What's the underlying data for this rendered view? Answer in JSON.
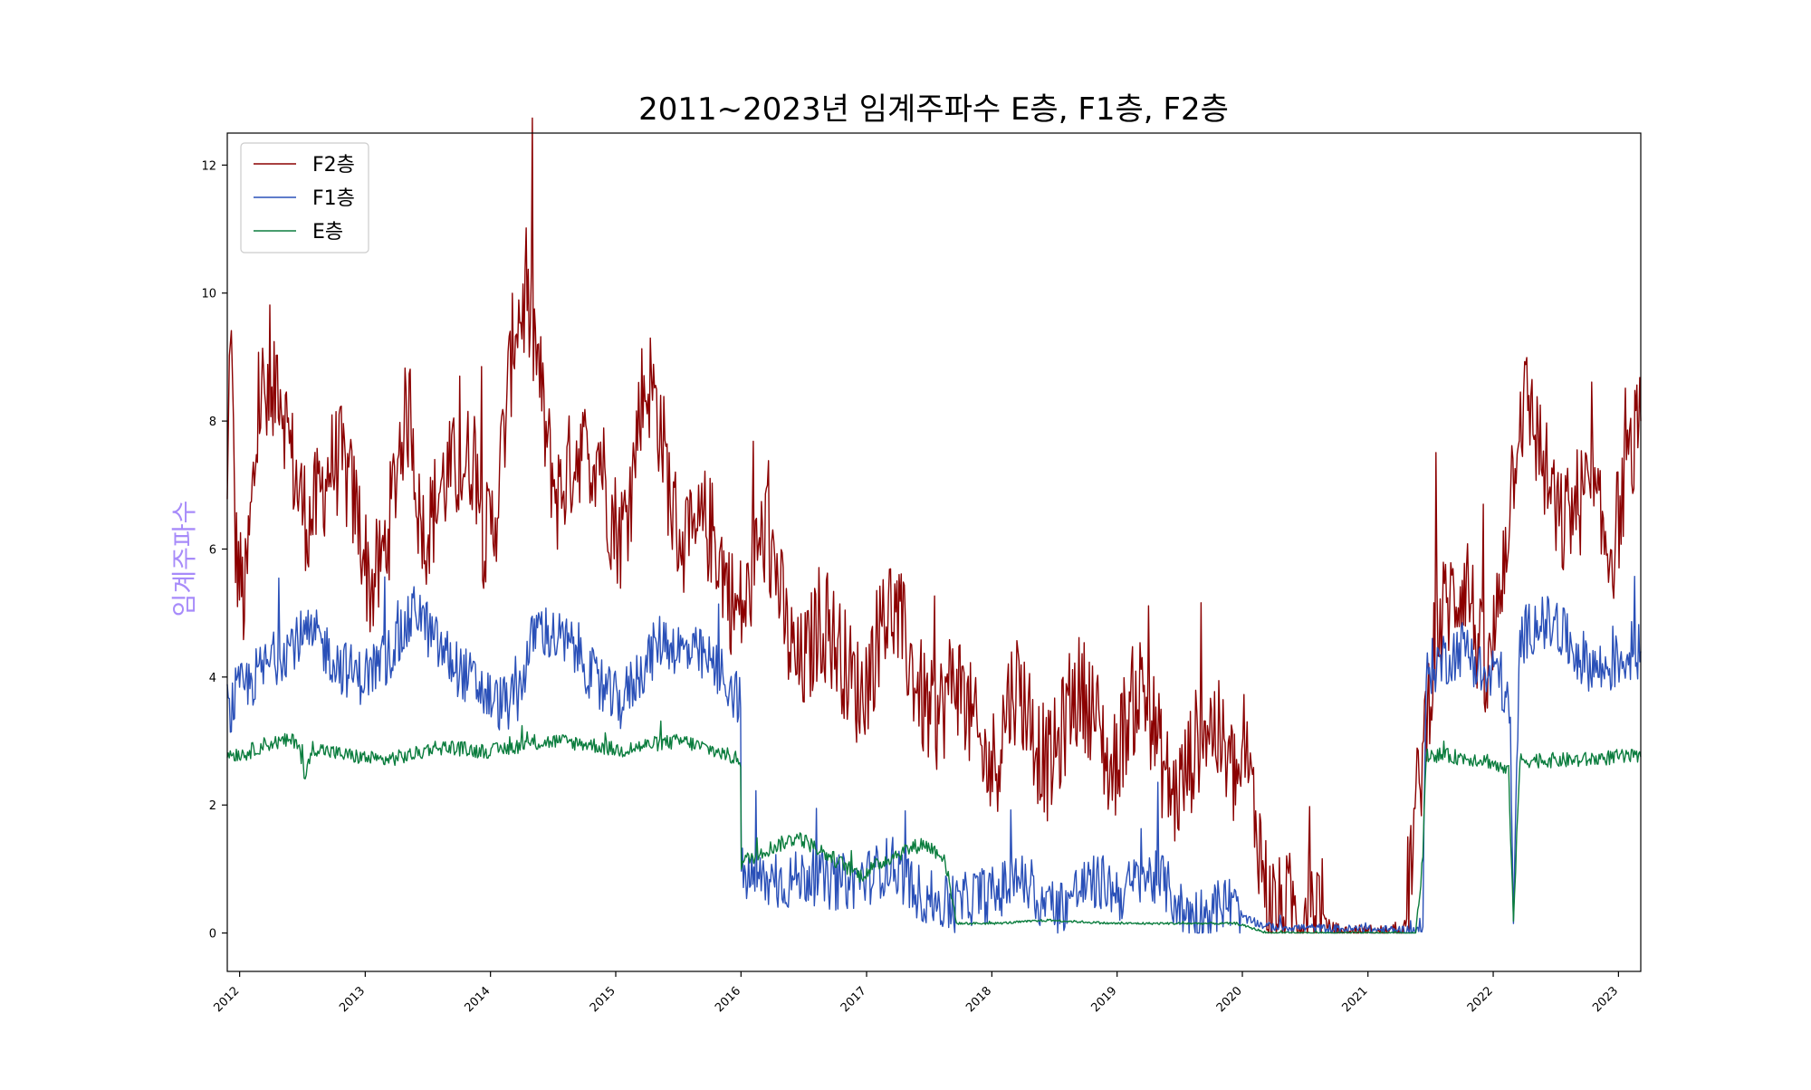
{
  "chart_data": {
    "type": "line",
    "title": "2011~2023년 임계주파수 E층, F1층, F2층",
    "xlabel": "",
    "ylabel": "임계주파수",
    "x_tick_labels": [
      "2012",
      "2013",
      "2014",
      "2015",
      "2016",
      "2017",
      "2018",
      "2019",
      "2020",
      "2021",
      "2022",
      "2023"
    ],
    "y_tick_labels": [
      "0",
      "2",
      "4",
      "6",
      "8",
      "10",
      "12"
    ],
    "xlim": [
      "2011-11-26",
      "2023-03-07"
    ],
    "ylim": [
      -0.6,
      12.5
    ],
    "grid": false,
    "legend_position": "upper-left",
    "series": [
      {
        "name": "F2층",
        "color": "#8b0000",
        "points": [
          [
            "2011-11-26",
            6.5
          ],
          [
            "2011-12-05",
            9.8
          ],
          [
            "2011-12-20",
            6.0
          ],
          [
            "2012-01-15",
            5.1
          ],
          [
            "2012-02-10",
            7.0
          ],
          [
            "2012-03-05",
            8.6
          ],
          [
            "2012-04-01",
            7.8
          ],
          [
            "2012-04-20",
            8.9
          ],
          [
            "2012-05-25",
            7.6
          ],
          [
            "2012-06-20",
            6.9
          ],
          [
            "2012-07-20",
            6.4
          ],
          [
            "2012-08-20",
            6.8
          ],
          [
            "2012-09-20",
            7.3
          ],
          [
            "2012-10-20",
            7.4
          ],
          [
            "2012-11-20",
            6.9
          ],
          [
            "2012-12-15",
            6.4
          ],
          [
            "2013-01-15",
            5.4
          ],
          [
            "2013-02-15",
            5.7
          ],
          [
            "2013-03-15",
            6.5
          ],
          [
            "2013-04-15",
            7.8
          ],
          [
            "2013-05-15",
            8.2
          ],
          [
            "2013-06-10",
            6.2
          ],
          [
            "2013-07-10",
            6.4
          ],
          [
            "2013-08-10",
            7.0
          ],
          [
            "2013-09-10",
            7.2
          ],
          [
            "2013-10-15",
            7.3
          ],
          [
            "2013-11-15",
            7.5
          ],
          [
            "2013-12-15",
            6.1
          ],
          [
            "2014-01-15",
            6.5
          ],
          [
            "2014-02-15",
            8.1
          ],
          [
            "2014-03-15",
            9.6
          ],
          [
            "2014-04-15",
            9.8
          ],
          [
            "2014-05-15",
            9.1
          ],
          [
            "2014-06-15",
            7.6
          ],
          [
            "2014-07-15",
            6.8
          ],
          [
            "2014-08-15",
            7.2
          ],
          [
            "2014-09-15",
            7.6
          ],
          [
            "2014-10-15",
            7.4
          ],
          [
            "2014-11-15",
            7.6
          ],
          [
            "2014-12-15",
            6.6
          ],
          [
            "2015-01-15",
            6.2
          ],
          [
            "2015-02-15",
            6.9
          ],
          [
            "2015-03-15",
            8.4
          ],
          [
            "2015-04-15",
            8.6
          ],
          [
            "2015-05-15",
            7.8
          ],
          [
            "2015-06-15",
            6.6
          ],
          [
            "2015-07-15",
            6.1
          ],
          [
            "2015-08-15",
            6.0
          ],
          [
            "2015-09-15",
            6.4
          ],
          [
            "2015-10-15",
            6.2
          ],
          [
            "2015-11-15",
            5.6
          ],
          [
            "2015-12-15",
            5.0
          ],
          [
            "2016-01-15",
            5.1
          ],
          [
            "2016-02-15",
            5.9
          ],
          [
            "2016-03-15",
            6.3
          ],
          [
            "2016-04-15",
            5.6
          ],
          [
            "2016-05-15",
            4.6
          ],
          [
            "2016-06-15",
            4.1
          ],
          [
            "2016-07-15",
            4.3
          ],
          [
            "2016-08-15",
            4.9
          ],
          [
            "2016-09-15",
            4.7
          ],
          [
            "2016-10-15",
            4.4
          ],
          [
            "2016-11-15",
            4.0
          ],
          [
            "2016-12-15",
            3.7
          ],
          [
            "2017-01-15",
            4.2
          ],
          [
            "2017-02-15",
            4.9
          ],
          [
            "2017-03-15",
            5.1
          ],
          [
            "2017-04-15",
            4.7
          ],
          [
            "2017-05-15",
            4.1
          ],
          [
            "2017-06-15",
            3.6
          ],
          [
            "2017-07-15",
            3.3
          ],
          [
            "2017-08-15",
            3.6
          ],
          [
            "2017-09-15",
            4.1
          ],
          [
            "2017-10-15",
            3.6
          ],
          [
            "2017-11-15",
            3.1
          ],
          [
            "2017-12-15",
            2.6
          ],
          [
            "2018-01-15",
            2.7
          ],
          [
            "2018-02-15",
            3.6
          ],
          [
            "2018-03-15",
            3.9
          ],
          [
            "2018-04-15",
            3.5
          ],
          [
            "2018-05-15",
            2.9
          ],
          [
            "2018-06-15",
            2.6
          ],
          [
            "2018-07-15",
            2.9
          ],
          [
            "2018-08-15",
            3.6
          ],
          [
            "2018-09-15",
            3.8
          ],
          [
            "2018-10-15",
            3.6
          ],
          [
            "2018-11-15",
            3.1
          ],
          [
            "2018-12-15",
            2.4
          ],
          [
            "2019-01-15",
            3.1
          ],
          [
            "2019-02-15",
            3.6
          ],
          [
            "2019-03-15",
            3.9
          ],
          [
            "2019-04-15",
            3.3
          ],
          [
            "2019-05-15",
            2.6
          ],
          [
            "2019-06-15",
            2.1
          ],
          [
            "2019-07-15",
            2.4
          ],
          [
            "2019-08-15",
            2.9
          ],
          [
            "2019-09-15",
            3.3
          ],
          [
            "2019-10-15",
            3.2
          ],
          [
            "2019-11-15",
            2.7
          ],
          [
            "2019-12-15",
            2.4
          ],
          [
            "2020-01-15",
            2.6
          ],
          [
            "2020-02-15",
            1.6
          ],
          [
            "2020-03-15",
            0.5
          ],
          [
            "2020-04-15",
            0.3
          ],
          [
            "2020-05-15",
            0.4
          ],
          [
            "2020-06-15",
            0.3
          ],
          [
            "2020-07-15",
            0.4
          ],
          [
            "2020-08-15",
            0.5
          ],
          [
            "2020-09-01",
            0.1
          ],
          [
            "2020-10-15",
            0.0
          ],
          [
            "2021-01-15",
            0.0
          ],
          [
            "2021-04-15",
            0.0
          ],
          [
            "2021-05-15",
            1.6
          ],
          [
            "2021-06-15",
            3.1
          ],
          [
            "2021-07-15",
            4.6
          ],
          [
            "2021-08-15",
            5.1
          ],
          [
            "2021-09-15",
            5.3
          ],
          [
            "2021-10-15",
            5.6
          ],
          [
            "2021-11-15",
            4.6
          ],
          [
            "2021-12-15",
            3.8
          ],
          [
            "2022-01-15",
            5.1
          ],
          [
            "2022-02-15",
            6.6
          ],
          [
            "2022-03-15",
            8.1
          ],
          [
            "2022-04-15",
            8.3
          ],
          [
            "2022-05-15",
            7.6
          ],
          [
            "2022-06-15",
            6.9
          ],
          [
            "2022-07-15",
            6.3
          ],
          [
            "2022-08-15",
            6.6
          ],
          [
            "2022-09-15",
            6.8
          ],
          [
            "2022-10-15",
            6.9
          ],
          [
            "2022-11-15",
            6.2
          ],
          [
            "2022-12-15",
            6.0
          ],
          [
            "2023-01-15",
            6.9
          ],
          [
            "2023-02-15",
            7.6
          ],
          [
            "2023-03-07",
            8.0
          ]
        ]
      },
      {
        "name": "F1층",
        "color": "#2a50b8",
        "points": [
          [
            "2011-11-26",
            3.3
          ],
          [
            "2011-12-20",
            3.7
          ],
          [
            "2012-02-15",
            4.0
          ],
          [
            "2012-04-15",
            4.3
          ],
          [
            "2012-06-15",
            4.6
          ],
          [
            "2012-08-15",
            4.6
          ],
          [
            "2012-10-15",
            4.2
          ],
          [
            "2012-12-15",
            4.0
          ],
          [
            "2013-02-15",
            4.2
          ],
          [
            "2013-04-15",
            4.6
          ],
          [
            "2013-06-01",
            5.1
          ],
          [
            "2013-07-15",
            4.6
          ],
          [
            "2013-09-15",
            4.2
          ],
          [
            "2013-11-15",
            3.9
          ],
          [
            "2014-01-15",
            3.6
          ],
          [
            "2014-03-15",
            3.6
          ],
          [
            "2014-05-15",
            4.8
          ],
          [
            "2014-07-15",
            4.6
          ],
          [
            "2014-09-15",
            4.4
          ],
          [
            "2014-11-15",
            3.8
          ],
          [
            "2015-01-15",
            3.6
          ],
          [
            "2015-03-15",
            4.1
          ],
          [
            "2015-05-15",
            4.6
          ],
          [
            "2015-07-15",
            4.4
          ],
          [
            "2015-09-15",
            4.3
          ],
          [
            "2015-11-15",
            4.0
          ],
          [
            "2015-12-31",
            3.6
          ],
          [
            "2016-01-02",
            0.9
          ],
          [
            "2016-03-15",
            0.8
          ],
          [
            "2016-05-15",
            0.8
          ],
          [
            "2016-07-15",
            0.9
          ],
          [
            "2016-09-15",
            0.8
          ],
          [
            "2016-11-15",
            0.8
          ],
          [
            "2017-01-15",
            0.9
          ],
          [
            "2017-03-15",
            1.1
          ],
          [
            "2017-05-15",
            0.7
          ],
          [
            "2017-07-15",
            0.5
          ],
          [
            "2017-09-15",
            0.4
          ],
          [
            "2017-11-15",
            0.6
          ],
          [
            "2018-01-15",
            0.6
          ],
          [
            "2018-03-15",
            0.9
          ],
          [
            "2018-05-15",
            0.5
          ],
          [
            "2018-07-15",
            0.4
          ],
          [
            "2018-09-15",
            0.7
          ],
          [
            "2018-11-15",
            0.8
          ],
          [
            "2019-01-15",
            0.6
          ],
          [
            "2019-03-15",
            0.9
          ],
          [
            "2019-05-15",
            0.8
          ],
          [
            "2019-07-15",
            0.3
          ],
          [
            "2019-09-15",
            0.3
          ],
          [
            "2019-11-15",
            0.5
          ],
          [
            "2020-01-15",
            0.2
          ],
          [
            "2020-03-15",
            0.1
          ],
          [
            "2021-01-15",
            0.05
          ],
          [
            "2021-06-10",
            0.05
          ],
          [
            "2021-06-20",
            4.1
          ],
          [
            "2021-08-15",
            4.3
          ],
          [
            "2021-10-15",
            4.5
          ],
          [
            "2021-12-15",
            3.9
          ],
          [
            "2022-01-15",
            4.2
          ],
          [
            "2022-02-20",
            3.3
          ],
          [
            "2022-03-01",
            0.1
          ],
          [
            "2022-03-20",
            4.6
          ],
          [
            "2022-05-15",
            4.9
          ],
          [
            "2022-07-15",
            4.7
          ],
          [
            "2022-09-15",
            4.3
          ],
          [
            "2022-11-15",
            4.1
          ],
          [
            "2023-01-15",
            4.3
          ],
          [
            "2023-03-07",
            4.4
          ]
        ]
      },
      {
        "name": "E층",
        "color": "#0b7d3e",
        "points": [
          [
            "2011-11-26",
            2.8
          ],
          [
            "2012-01-15",
            2.8
          ],
          [
            "2012-03-15",
            2.95
          ],
          [
            "2012-05-15",
            3.0
          ],
          [
            "2012-06-20",
            3.0
          ],
          [
            "2012-07-10",
            2.4
          ],
          [
            "2012-08-01",
            2.9
          ],
          [
            "2012-10-15",
            2.8
          ],
          [
            "2012-12-15",
            2.75
          ],
          [
            "2013-02-15",
            2.7
          ],
          [
            "2013-04-15",
            2.75
          ],
          [
            "2013-06-01",
            2.8
          ],
          [
            "2013-07-15",
            2.9
          ],
          [
            "2013-09-15",
            2.9
          ],
          [
            "2013-11-15",
            2.85
          ],
          [
            "2014-01-15",
            2.85
          ],
          [
            "2014-04-15",
            2.95
          ],
          [
            "2014-07-15",
            3.0
          ],
          [
            "2014-10-15",
            2.95
          ],
          [
            "2015-01-15",
            2.85
          ],
          [
            "2015-04-15",
            2.95
          ],
          [
            "2015-07-15",
            3.0
          ],
          [
            "2015-10-15",
            2.85
          ],
          [
            "2015-12-31",
            2.7
          ],
          [
            "2016-01-02",
            1.1
          ],
          [
            "2016-03-15",
            1.3
          ],
          [
            "2016-06-15",
            1.5
          ],
          [
            "2016-09-15",
            1.2
          ],
          [
            "2016-12-15",
            0.9
          ],
          [
            "2017-03-15",
            1.2
          ],
          [
            "2017-06-15",
            1.4
          ],
          [
            "2017-08-15",
            1.2
          ],
          [
            "2017-09-20",
            0.15
          ],
          [
            "2018-01-15",
            0.15
          ],
          [
            "2018-06-15",
            0.2
          ],
          [
            "2018-12-15",
            0.15
          ],
          [
            "2019-06-15",
            0.15
          ],
          [
            "2019-12-15",
            0.15
          ],
          [
            "2020-03-15",
            0.0
          ],
          [
            "2021-01-15",
            0.0
          ],
          [
            "2021-05-20",
            0.0
          ],
          [
            "2021-06-10",
            1.2
          ],
          [
            "2021-06-20",
            2.8
          ],
          [
            "2021-09-15",
            2.75
          ],
          [
            "2021-12-15",
            2.7
          ],
          [
            "2022-02-15",
            2.5
          ],
          [
            "2022-03-01",
            0.2
          ],
          [
            "2022-03-20",
            2.7
          ],
          [
            "2022-06-15",
            2.7
          ],
          [
            "2022-09-15",
            2.7
          ],
          [
            "2022-12-15",
            2.75
          ],
          [
            "2023-03-07",
            2.75
          ]
        ]
      }
    ]
  }
}
